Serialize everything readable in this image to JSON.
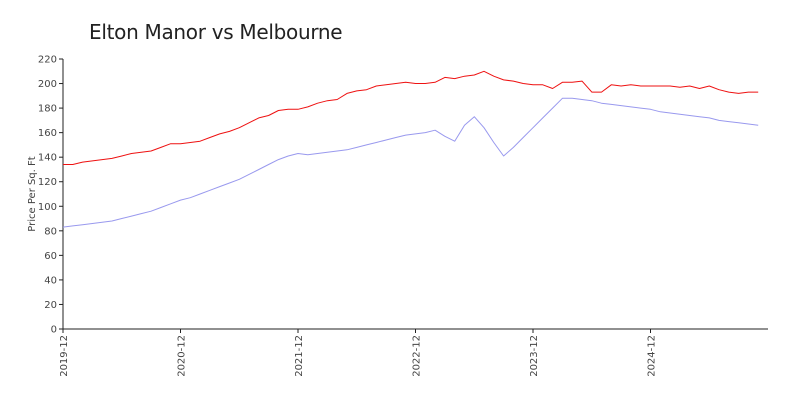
{
  "chart_data": {
    "type": "line",
    "title": "Elton Manor vs Melbourne",
    "ylabel": "Price Per Sq. Ft",
    "xlabel": "",
    "ylim": [
      0,
      220
    ],
    "yticks": [
      0,
      20,
      40,
      60,
      80,
      100,
      120,
      140,
      160,
      180,
      200,
      220
    ],
    "xlim": [
      "2019-12",
      "2025-12"
    ],
    "xticks": [
      "2019-12",
      "2020-12",
      "2021-12",
      "2022-12",
      "2023-12",
      "2024-12"
    ],
    "x": [
      "2019-12",
      "2020-01",
      "2020-02",
      "2020-03",
      "2020-04",
      "2020-05",
      "2020-06",
      "2020-07",
      "2020-08",
      "2020-09",
      "2020-10",
      "2020-11",
      "2020-12",
      "2021-01",
      "2021-02",
      "2021-03",
      "2021-04",
      "2021-05",
      "2021-06",
      "2021-07",
      "2021-08",
      "2021-09",
      "2021-10",
      "2021-11",
      "2021-12",
      "2022-01",
      "2022-02",
      "2022-03",
      "2022-04",
      "2022-05",
      "2022-06",
      "2022-07",
      "2022-08",
      "2022-09",
      "2022-10",
      "2022-11",
      "2022-12",
      "2023-01",
      "2023-02",
      "2023-03",
      "2023-04",
      "2023-05",
      "2023-06",
      "2023-07",
      "2023-08",
      "2023-09",
      "2023-10",
      "2023-11",
      "2023-12",
      "2024-01",
      "2024-02",
      "2024-03",
      "2024-04",
      "2024-05",
      "2024-06",
      "2024-07",
      "2024-08",
      "2024-09",
      "2024-10",
      "2024-11",
      "2024-12",
      "2025-01",
      "2025-02",
      "2025-03",
      "2025-04",
      "2025-05",
      "2025-06",
      "2025-07",
      "2025-08",
      "2025-09",
      "2025-10",
      "2025-11"
    ],
    "series": [
      {
        "color": "#ee1111",
        "values": [
          134,
          134,
          136,
          137,
          138,
          139,
          141,
          143,
          144,
          145,
          148,
          151,
          151,
          152,
          153,
          156,
          159,
          161,
          164,
          168,
          172,
          174,
          178,
          179,
          179,
          181,
          184,
          186,
          187,
          192,
          194,
          195,
          198,
          199,
          200,
          201,
          200,
          200,
          201,
          205,
          204,
          206,
          207,
          210,
          206,
          203,
          202,
          200,
          199,
          199,
          196,
          201,
          201,
          202,
          193,
          193,
          199,
          198,
          199,
          198,
          198,
          198,
          198,
          197,
          198,
          196,
          198,
          195,
          193,
          192,
          193,
          193
        ]
      },
      {
        "color": "#9999ee",
        "values": [
          83,
          84,
          85,
          86,
          87,
          88,
          90,
          92,
          94,
          96,
          99,
          102,
          105,
          107,
          110,
          113,
          116,
          119,
          122,
          126,
          130,
          134,
          138,
          141,
          143,
          142,
          143,
          144,
          145,
          146,
          148,
          150,
          152,
          154,
          156,
          158,
          159,
          160,
          162,
          157,
          153,
          166,
          173,
          164,
          152,
          141,
          148,
          156,
          164,
          172,
          180,
          188,
          188,
          187,
          186,
          184,
          183,
          182,
          181,
          180,
          179,
          177,
          176,
          175,
          174,
          173,
          172,
          170,
          169,
          168,
          167,
          166
        ]
      }
    ]
  }
}
